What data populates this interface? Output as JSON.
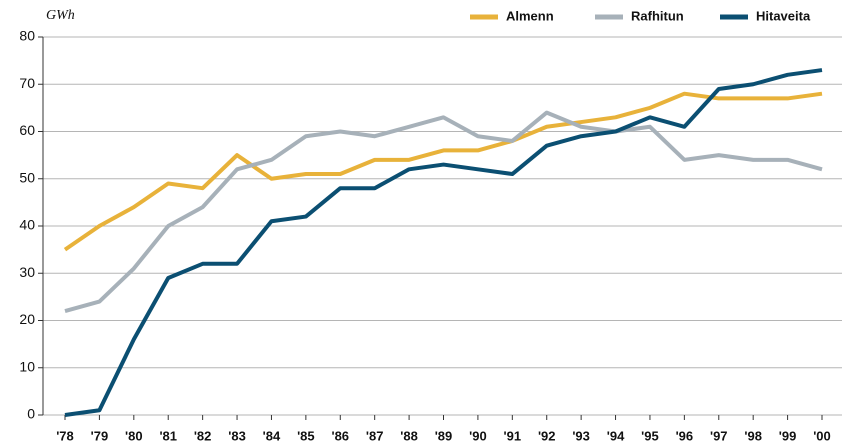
{
  "chart_data": {
    "type": "line",
    "unit": "GWh",
    "categories": [
      "'78",
      "'79",
      "'80",
      "'81",
      "'82",
      "'83",
      "'84",
      "'85",
      "'86",
      "'87",
      "'88",
      "'89",
      "'90",
      "'91",
      "'92",
      "'93",
      "'94",
      "'95",
      "'96",
      "'97",
      "'98",
      "'99",
      "'00"
    ],
    "series": [
      {
        "name": "Almenn",
        "color": "#e8b23a",
        "values": [
          35,
          40,
          44,
          49,
          48,
          55,
          50,
          51,
          51,
          54,
          54,
          56,
          56,
          58,
          61,
          62,
          63,
          65,
          68,
          67,
          67,
          67,
          68
        ]
      },
      {
        "name": "Rafhitun",
        "color": "#a7b1b9",
        "values": [
          22,
          24,
          31,
          40,
          44,
          52,
          54,
          59,
          60,
          59,
          61,
          63,
          59,
          58,
          64,
          61,
          60,
          61,
          54,
          55,
          54,
          54,
          52
        ]
      },
      {
        "name": "Hitaveita",
        "color": "#0b4f72",
        "values": [
          0,
          1,
          16,
          29,
          32,
          32,
          41,
          42,
          48,
          48,
          52,
          53,
          52,
          51,
          57,
          59,
          60,
          63,
          61,
          69,
          70,
          72,
          73
        ]
      }
    ],
    "ylim": [
      0,
      80
    ],
    "yticks": [
      0,
      10,
      20,
      30,
      40,
      50,
      60,
      70,
      80
    ],
    "grid": true
  }
}
